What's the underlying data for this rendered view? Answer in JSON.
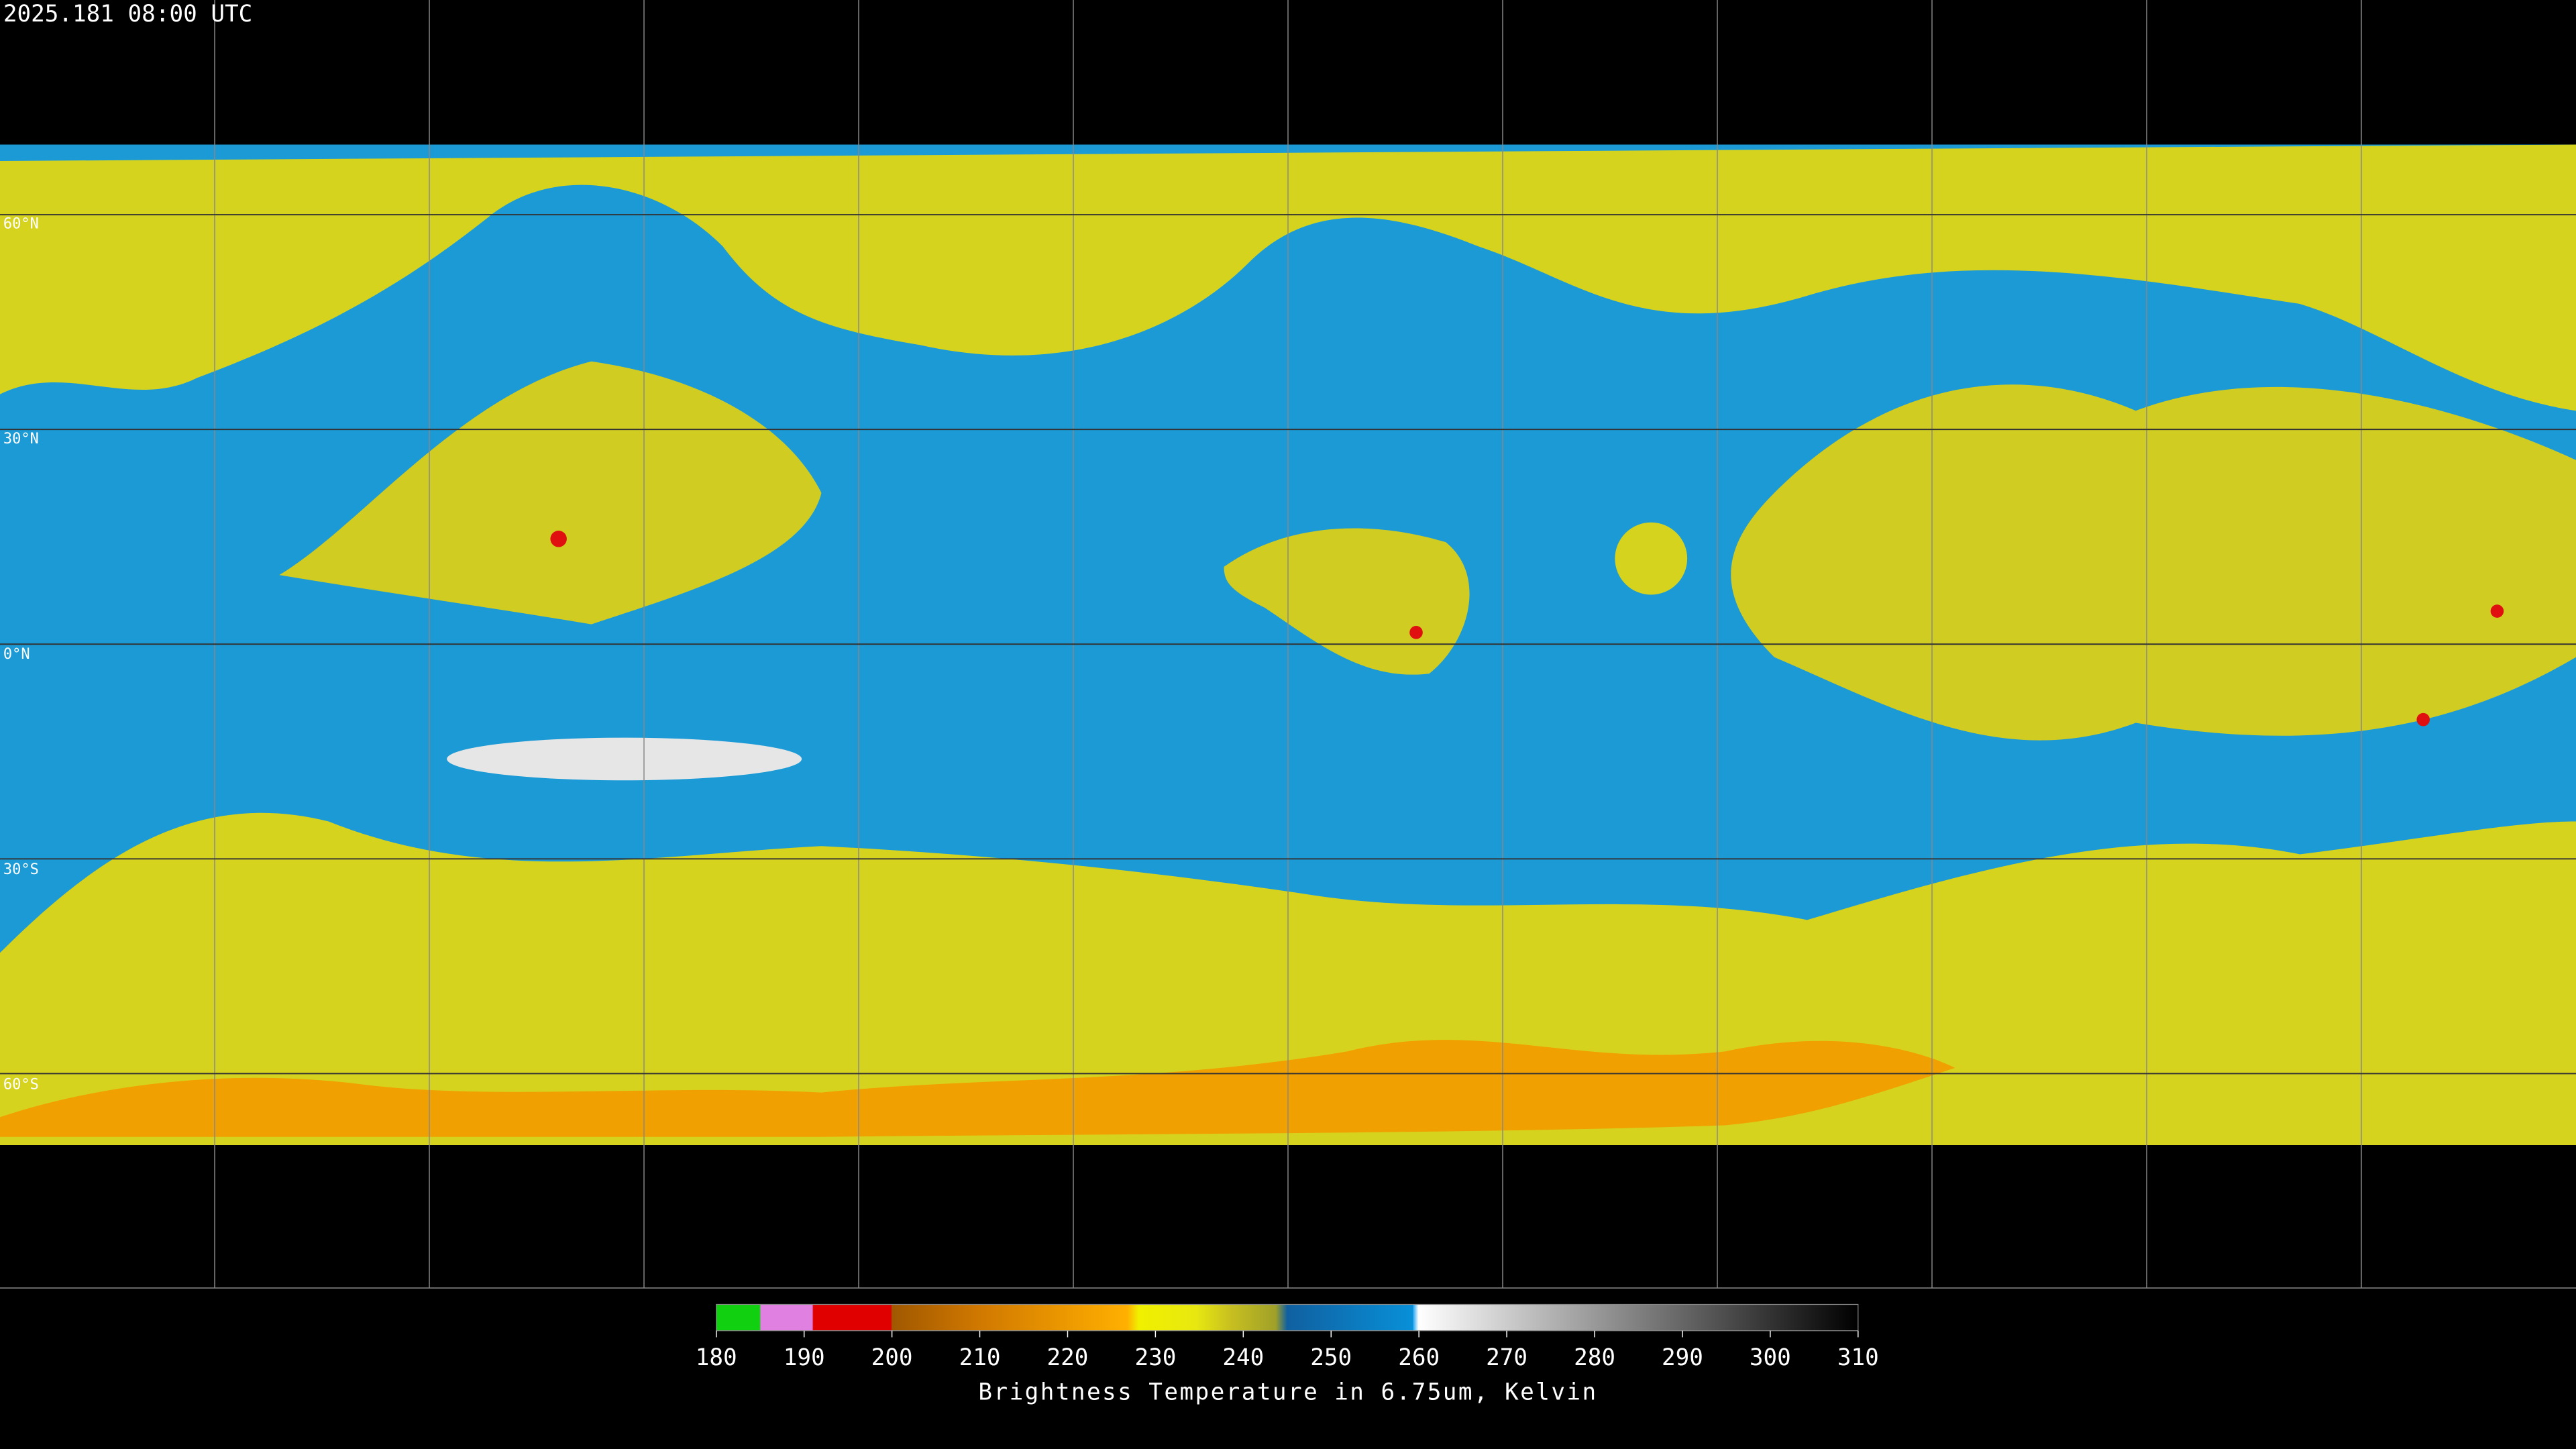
{
  "header": {
    "title": "2025.181 08:00 UTC"
  },
  "map": {
    "lat_labels": [
      "60°N",
      "30°N",
      "0°N",
      "30°S",
      "60°S"
    ]
  },
  "colorbar": {
    "ticks": [
      180,
      190,
      200,
      210,
      220,
      230,
      240,
      250,
      260,
      270,
      280,
      290,
      300,
      310
    ],
    "label": "Brightness Temperature in 6.75um, Kelvin"
  }
}
